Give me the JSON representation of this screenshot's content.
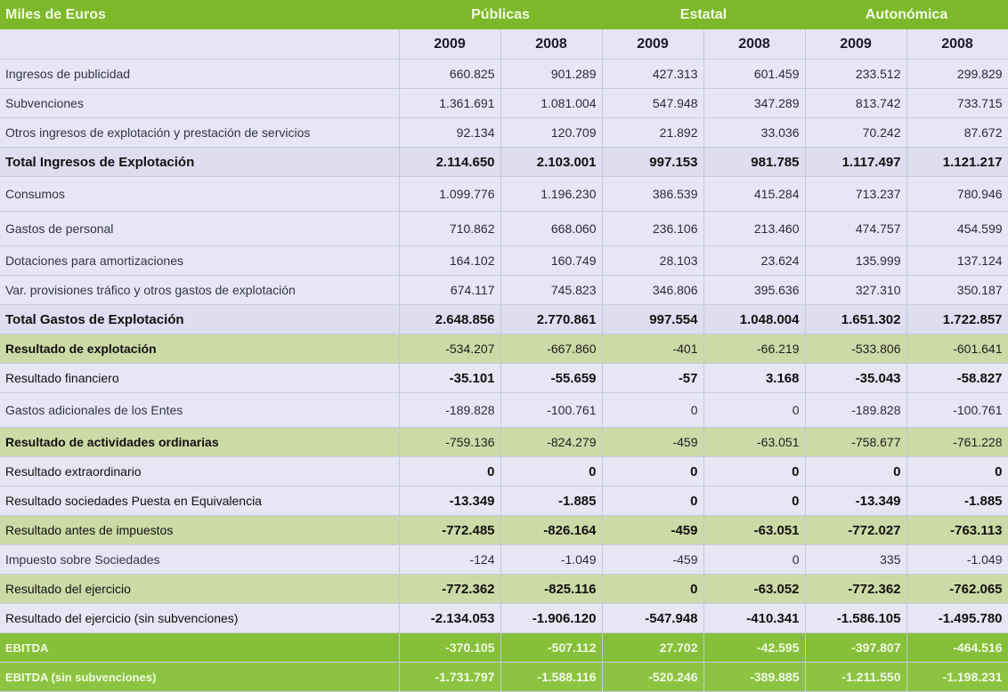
{
  "header": {
    "units_label": "Miles de Euros",
    "groups": [
      "Públicas",
      "Estatal",
      "Autonómica"
    ],
    "years": [
      "2009",
      "2008",
      "2009",
      "2008",
      "2009",
      "2008"
    ]
  },
  "rows": [
    {
      "label": "Ingresos de publicidad",
      "style": "plain",
      "values": [
        "660.825",
        "901.289",
        "427.313",
        "601.459",
        "233.512",
        "299.829"
      ]
    },
    {
      "label": "Subvenciones",
      "style": "plain",
      "values": [
        "1.361.691",
        "1.081.004",
        "547.948",
        "347.289",
        "813.742",
        "733.715"
      ]
    },
    {
      "label": "Otros ingresos de explotación y prestación de servicios",
      "style": "plain",
      "values": [
        "92.134",
        "120.709",
        "21.892",
        "33.036",
        "70.242",
        "87.672"
      ]
    },
    {
      "label": "Total Ingresos de Explotación",
      "style": "total",
      "values": [
        "2.114.650",
        "2.103.001",
        "997.153",
        "981.785",
        "1.117.497",
        "1.121.217"
      ]
    },
    {
      "label": "Consumos",
      "style": "plain tall",
      "values": [
        "1.099.776",
        "1.196.230",
        "386.539",
        "415.284",
        "713.237",
        "780.946"
      ]
    },
    {
      "label": "Gastos de personal",
      "style": "plain tall",
      "values": [
        "710.862",
        "668.060",
        "236.106",
        "213.460",
        "474.757",
        "454.599"
      ]
    },
    {
      "label": "Dotaciones para amortizaciones",
      "style": "plain",
      "values": [
        "164.102",
        "160.749",
        "28.103",
        "23.624",
        "135.999",
        "137.124"
      ]
    },
    {
      "label": "Var. provisiones tráfico y otros gastos de explotación",
      "style": "plain",
      "values": [
        "674.117",
        "745.823",
        "346.806",
        "395.636",
        "327.310",
        "350.187"
      ]
    },
    {
      "label": "Total Gastos de Explotación",
      "style": "total",
      "values": [
        "2.648.856",
        "2.770.861",
        "997.554",
        "1.048.004",
        "1.651.302",
        "1.722.857"
      ]
    },
    {
      "label": "Resultado de explotación",
      "style": "green-light",
      "values": [
        "-534.207",
        "-667.860",
        "-401",
        "-66.219",
        "-533.806",
        "-601.641"
      ]
    },
    {
      "label": "Resultado financiero",
      "style": "plain bold",
      "values": [
        "-35.101",
        "-55.659",
        "-57",
        "3.168",
        "-35.043",
        "-58.827"
      ]
    },
    {
      "label": "Gastos adicionales de los Entes",
      "style": "plain tall",
      "values": [
        "-189.828",
        "-100.761",
        "0",
        "0",
        "-189.828",
        "-100.761"
      ]
    },
    {
      "label": "Resultado de actividades ordinarias",
      "style": "green-light",
      "values": [
        "-759.136",
        "-824.279",
        "-459",
        "-63.051",
        "-758.677",
        "-761.228"
      ]
    },
    {
      "label": "Resultado extraordinario",
      "style": "plain bold",
      "values": [
        "0",
        "0",
        "0",
        "0",
        "0",
        "0"
      ]
    },
    {
      "label": "Resultado sociedades Puesta en Equivalencia",
      "style": "plain bold",
      "values": [
        "-13.349",
        "-1.885",
        "0",
        "0",
        "-13.349",
        "-1.885"
      ]
    },
    {
      "label": "Resultado antes de impuestos",
      "style": "green-light bold",
      "values": [
        "-772.485",
        "-826.164",
        "-459",
        "-63.051",
        "-772.027",
        "-763.113"
      ]
    },
    {
      "label": "Impuesto sobre Sociedades",
      "style": "plain",
      "values": [
        "-124",
        "-1.049",
        "-459",
        "0",
        "335",
        "-1.049"
      ]
    },
    {
      "label": "Resultado del ejercicio",
      "style": "green-light bold",
      "values": [
        "-772.362",
        "-825.116",
        "0",
        "-63.052",
        "-772.362",
        "-762.065"
      ]
    },
    {
      "label": "Resultado del ejercicio (sin subvenciones)",
      "style": "plain bold",
      "values": [
        "-2.134.053",
        "-1.906.120",
        "-547.948",
        "-410.341",
        "-1.586.105",
        "-1.495.780"
      ]
    },
    {
      "label": "EBITDA",
      "style": "ebitda",
      "values": [
        "-370.105",
        "-507.112",
        "27.702",
        "-42.595",
        "-397.807",
        "-464.516"
      ]
    },
    {
      "label": "EBITDA (sin subvenciones)",
      "style": "ebitda last",
      "values": [
        "-1.731.797",
        "-1.588.116",
        "-520.246",
        "-389.885",
        "-1.211.550",
        "-1.198.231"
      ]
    }
  ]
}
